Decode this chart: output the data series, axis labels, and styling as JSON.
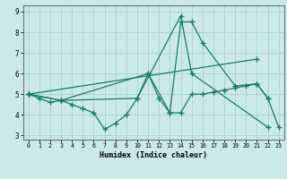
{
  "xlabel": "Humidex (Indice chaleur)",
  "background_color": "#cce9e9",
  "grid_color": "#aad4d4",
  "line_color": "#1a7a6e",
  "xlim": [
    -0.5,
    23.5
  ],
  "ylim": [
    2.8,
    9.3
  ],
  "yticks": [
    3,
    4,
    5,
    6,
    7,
    8,
    9
  ],
  "xticks": [
    0,
    1,
    2,
    3,
    4,
    5,
    6,
    7,
    8,
    9,
    10,
    11,
    12,
    13,
    14,
    15,
    16,
    17,
    18,
    19,
    20,
    21,
    22,
    23
  ],
  "series": [
    {
      "x": [
        0,
        1,
        2,
        3,
        4,
        5,
        6,
        7,
        8,
        9,
        10,
        11,
        12,
        13,
        14,
        15,
        16,
        17,
        18,
        19,
        20,
        21,
        22,
        23
      ],
      "y": [
        5.0,
        4.8,
        4.6,
        4.7,
        4.5,
        4.3,
        4.1,
        3.3,
        3.6,
        4.0,
        4.8,
        6.0,
        4.8,
        4.1,
        4.1,
        5.0,
        5.0,
        5.1,
        5.2,
        5.3,
        5.4,
        5.5,
        4.8,
        3.4
      ]
    },
    {
      "x": [
        0,
        21
      ],
      "y": [
        5.0,
        6.7
      ]
    },
    {
      "comment": "line: (0,5) -> (3,4.7) -> (10,4.8) -> (14,8.8) -> (15,6.0) -> (22,3.4)",
      "x": [
        0,
        3,
        10,
        14,
        15,
        22
      ],
      "y": [
        5.0,
        4.7,
        4.8,
        8.8,
        6.0,
        3.4
      ]
    },
    {
      "comment": "line: (0,5) -> (3,4.7) -> (11,6.0) -> (13,4.1) -> (14,8.5) -> (15,8.5) -> (16,7.5) -> (19,5.4) -> (21,5.5) -> (22,4.8)",
      "x": [
        0,
        3,
        11,
        13,
        14,
        15,
        16,
        19,
        21,
        22
      ],
      "y": [
        5.0,
        4.7,
        6.0,
        4.1,
        8.5,
        8.5,
        7.5,
        5.4,
        5.5,
        4.8
      ]
    }
  ]
}
